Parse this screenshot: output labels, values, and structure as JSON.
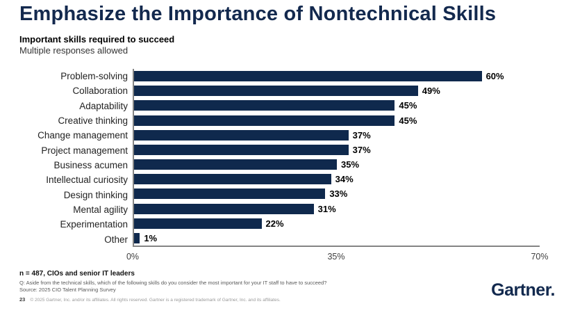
{
  "slide": {
    "title": "Emphasize the Importance of Nontechnical Skills",
    "subtitle_bold": "Important skills required to succeed",
    "subtitle_regular": "Multiple responses allowed"
  },
  "chart_data": {
    "type": "bar",
    "orientation": "horizontal",
    "title": "Important skills required to succeed",
    "subtitle": "Multiple responses allowed",
    "categories": [
      "Problem-solving",
      "Collaboration",
      "Adaptability",
      "Creative thinking",
      "Change management",
      "Project management",
      "Business acumen",
      "Intellectual curiosity",
      "Design thinking",
      "Mental agility",
      "Experimentation",
      "Other"
    ],
    "values": [
      60,
      49,
      45,
      45,
      37,
      37,
      35,
      34,
      33,
      31,
      22,
      1
    ],
    "value_labels": [
      "60%",
      "49%",
      "45%",
      "45%",
      "37%",
      "37%",
      "35%",
      "34%",
      "33%",
      "31%",
      "22%",
      "1%"
    ],
    "xlabel": "",
    "ylabel": "",
    "xlim": [
      0,
      70
    ],
    "x_ticks": [
      "0%",
      "35%",
      "70%"
    ],
    "grid": false,
    "legend": false,
    "bar_color": "#0f294d",
    "axis_line_color": "#848484"
  },
  "footer": {
    "note": "n = 487, CIOs and senior IT leaders",
    "question": "Q: Aside from the technical skills, which of the following skills do you consider the most important for your IT staff to have to succeed?",
    "source": "Source: 2025 CIO Talent Planning Survey",
    "page_number": "23",
    "copyright": "© 2025 Gartner, Inc. and/or its affiliates. All rights reserved. Gartner is a registered trademark of Gartner, Inc. and its affiliates.",
    "logo_text": "Gartner."
  }
}
